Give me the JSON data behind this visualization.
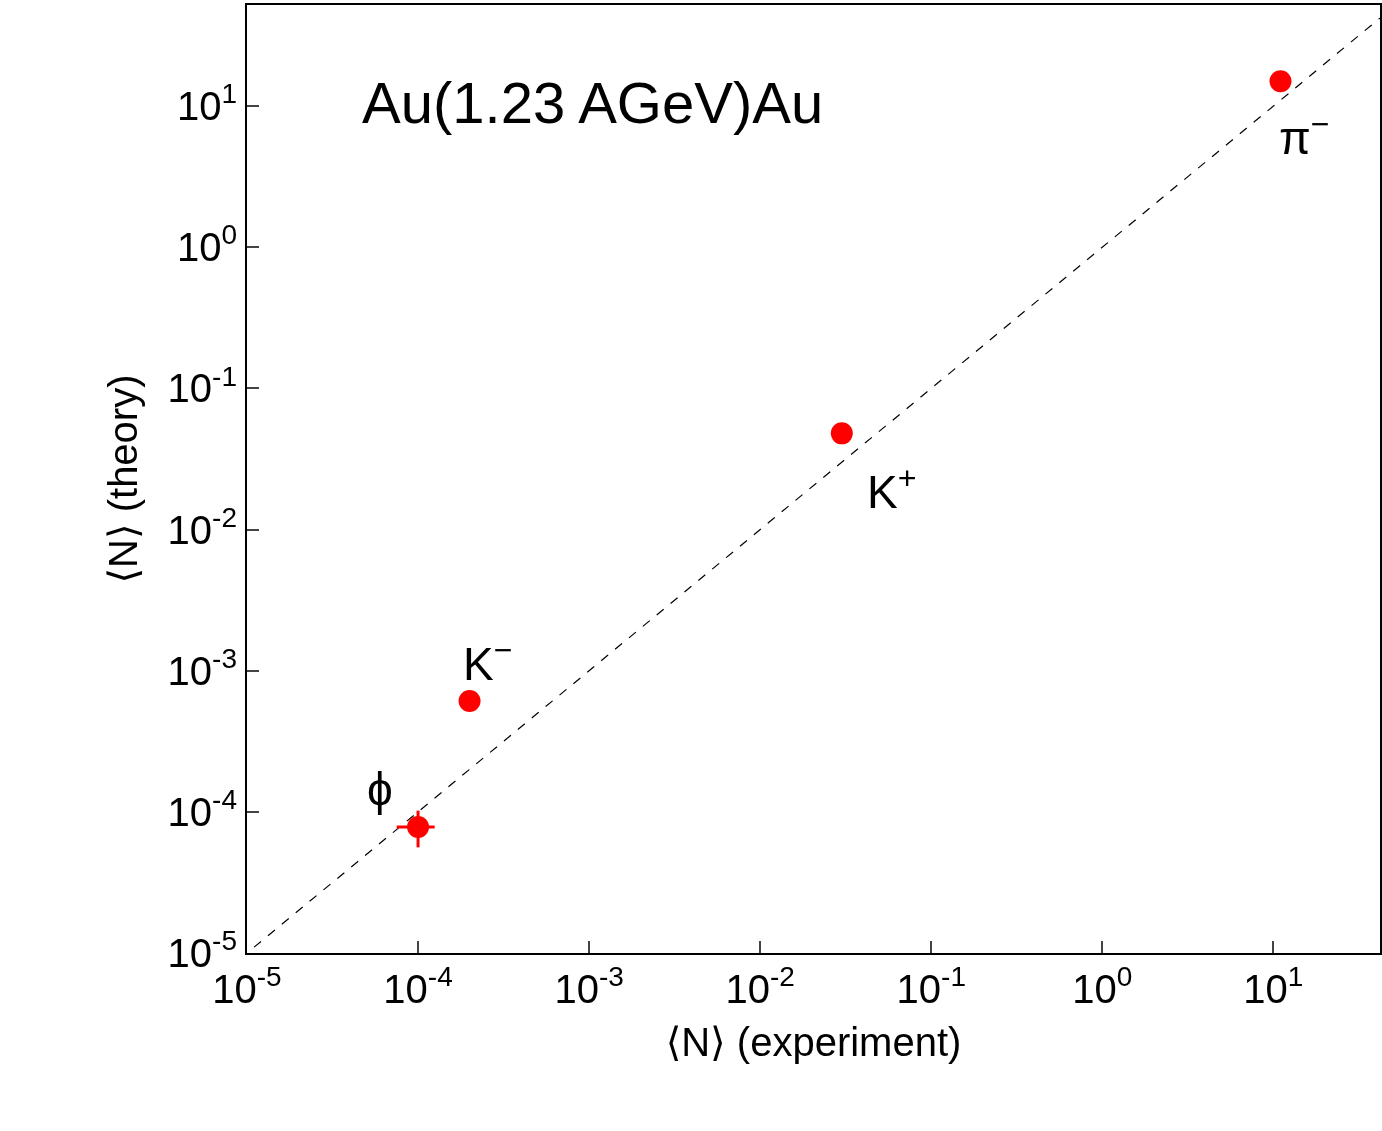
{
  "chart_data": {
    "type": "scatter",
    "title": "Au(1.23 AGeV)Au",
    "xlabel": "⟨N⟩ (experiment)",
    "ylabel": "⟨N⟩ (theory)",
    "log": "xy",
    "grid": false,
    "marker": "circle",
    "xlim": [
      1e-05,
      42
    ],
    "ylim": [
      1e-05,
      52
    ],
    "xticks": [
      {
        "value": 1e-05,
        "label": "10$^{-5}$"
      },
      {
        "value": 0.0001,
        "label": "10$^{-4}$"
      },
      {
        "value": 0.001,
        "label": "10$^{-3}$"
      },
      {
        "value": 0.01,
        "label": "10$^{-2}$"
      },
      {
        "value": 0.1,
        "label": "10$^{-1}$"
      },
      {
        "value": 1,
        "label": "10$^{0}$"
      },
      {
        "value": 10,
        "label": "10$^{1}$"
      }
    ],
    "yticks": [
      {
        "value": 1e-05,
        "label": "10$^{-5}$"
      },
      {
        "value": 0.0001,
        "label": "10$^{-4}$"
      },
      {
        "value": 0.001,
        "label": "10$^{-3}$"
      },
      {
        "value": 0.01,
        "label": "10$^{-2}$"
      },
      {
        "value": 0.1,
        "label": "10$^{-1}$"
      },
      {
        "value": 1,
        "label": "10$^{0}$"
      },
      {
        "value": 10,
        "label": "10$^{1}$"
      }
    ],
    "series": [
      {
        "type": "line",
        "color": "#000000",
        "line_style": "dashed",
        "marker": "none",
        "x": [
          1.1e-05,
          42
        ],
        "values": [
          1.1e-05,
          42
        ]
      },
      {
        "color": "#ff0000",
        "x": [
          11,
          0.03,
          0.0002,
          0.0001
        ],
        "values": [
          15,
          0.048,
          0.00061,
          7.8e-05
        ],
        "errors": [
          null,
          null,
          null,
          [
            5.6e-05,
            0.000102
          ]
        ],
        "xerrors": [
          null,
          null,
          null,
          [
            7.5e-05,
            0.000125
          ]
        ]
      }
    ],
    "annotations": [
      {
        "text": "π$^{−}$",
        "x": 11,
        "y": 15
      },
      {
        "text": "K$^{+}$",
        "x": 0.03,
        "y": 0.048
      },
      {
        "text": "K$^{−}$",
        "x": 0.0002,
        "y": 0.00061
      },
      {
        "text": "ϕ",
        "x": 0.0001,
        "y": 7.8e-05
      }
    ]
  }
}
